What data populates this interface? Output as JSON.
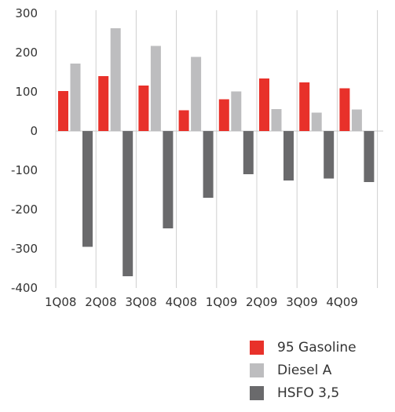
{
  "chart_data": {
    "type": "bar",
    "categories": [
      "1Q08",
      "2Q08",
      "3Q08",
      "4Q08",
      "1Q09",
      "2Q09",
      "3Q09",
      "4Q09"
    ],
    "series": [
      {
        "name": "95 Gasoline",
        "color": "#e8312a",
        "values": [
          102,
          140,
          116,
          53,
          81,
          134,
          124,
          109
        ]
      },
      {
        "name": "Diesel A",
        "color": "#bdbdbf",
        "values": [
          172,
          262,
          217,
          189,
          101,
          56,
          47,
          55
        ]
      },
      {
        "name": "HSFO 3,5",
        "color": "#6a6a6c",
        "values": [
          -295,
          -370,
          -248,
          -170,
          -110,
          -126,
          -121,
          -130
        ]
      }
    ],
    "ylim": [
      -400,
      300
    ],
    "yticks": [
      300,
      200,
      100,
      0,
      -100,
      -200,
      -300,
      -400
    ],
    "ytick_labels": [
      "300",
      "200",
      "100",
      "0",
      "-100",
      "-200",
      "-300",
      "-400"
    ],
    "title": "",
    "xlabel": "",
    "ylabel": "",
    "grid": "vertical separators",
    "legend_position": "bottom-right"
  }
}
